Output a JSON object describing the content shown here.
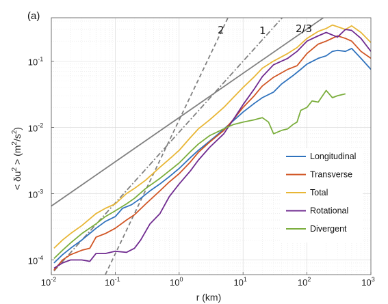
{
  "chart_data": {
    "type": "line",
    "panel_label": "(a)",
    "xlabel": "r (km)",
    "ylabel": "< δu² > (m²/s²)",
    "ylabel_parts": {
      "open": "< δu",
      "sup1": "2",
      "mid": "> (m",
      "sup2": "2",
      "mid2": "/s",
      "sup3": "2",
      "close": ")"
    },
    "xscale": "log",
    "yscale": "log",
    "xlim": [
      0.01,
      1000
    ],
    "ylim": [
      6e-05,
      0.45
    ],
    "grid": true,
    "legend_position": "lower-right",
    "x_ticks": [
      {
        "base": "10",
        "exp": "-2",
        "value": 0.01
      },
      {
        "base": "10",
        "exp": "-1",
        "value": 0.1
      },
      {
        "base": "10",
        "exp": "0",
        "value": 1
      },
      {
        "base": "10",
        "exp": "1",
        "value": 10
      },
      {
        "base": "10",
        "exp": "2",
        "value": 100
      },
      {
        "base": "10",
        "exp": "3",
        "value": 1000
      }
    ],
    "y_ticks": [
      {
        "base": "10",
        "exp": "-4",
        "value": 0.0001
      },
      {
        "base": "10",
        "exp": "-3",
        "value": 0.001
      },
      {
        "base": "10",
        "exp": "-2",
        "value": 0.01
      },
      {
        "base": "10",
        "exp": "-1",
        "value": 0.1
      }
    ],
    "series": [
      {
        "name": "Longitudinal",
        "color": "#2f72bd",
        "points": [
          [
            0.011,
            9e-05
          ],
          [
            0.015,
            0.00012
          ],
          [
            0.02,
            0.00015
          ],
          [
            0.03,
            0.0002
          ],
          [
            0.05,
            0.0003
          ],
          [
            0.07,
            0.00038
          ],
          [
            0.1,
            0.00045
          ],
          [
            0.13,
            0.0006
          ],
          [
            0.18,
            0.00068
          ],
          [
            0.25,
            0.00085
          ],
          [
            0.35,
            0.0011
          ],
          [
            0.5,
            0.0014
          ],
          [
            0.7,
            0.0018
          ],
          [
            1,
            0.0024
          ],
          [
            1.5,
            0.0035
          ],
          [
            2,
            0.0045
          ],
          [
            3,
            0.0062
          ],
          [
            4,
            0.0078
          ],
          [
            6,
            0.011
          ],
          [
            8,
            0.014
          ],
          [
            10,
            0.017
          ],
          [
            15,
            0.023
          ],
          [
            20,
            0.028
          ],
          [
            30,
            0.034
          ],
          [
            40,
            0.045
          ],
          [
            60,
            0.06
          ],
          [
            80,
            0.075
          ],
          [
            100,
            0.09
          ],
          [
            150,
            0.11
          ],
          [
            200,
            0.12
          ],
          [
            250,
            0.14
          ],
          [
            300,
            0.145
          ],
          [
            400,
            0.14
          ],
          [
            500,
            0.155
          ],
          [
            700,
            0.11
          ],
          [
            1000,
            0.075
          ]
        ]
      },
      {
        "name": "Transverse",
        "color": "#d05423",
        "points": [
          [
            0.011,
            7e-05
          ],
          [
            0.015,
            0.0001
          ],
          [
            0.02,
            0.00012
          ],
          [
            0.03,
            0.00014
          ],
          [
            0.04,
            0.00015
          ],
          [
            0.05,
            0.00022
          ],
          [
            0.07,
            0.00025
          ],
          [
            0.1,
            0.0003
          ],
          [
            0.15,
            0.0004
          ],
          [
            0.2,
            0.00048
          ],
          [
            0.3,
            0.0007
          ],
          [
            0.5,
            0.0011
          ],
          [
            0.7,
            0.0015
          ],
          [
            1,
            0.002
          ],
          [
            1.5,
            0.003
          ],
          [
            2,
            0.0042
          ],
          [
            3,
            0.006
          ],
          [
            5,
            0.009
          ],
          [
            7,
            0.013
          ],
          [
            10,
            0.02
          ],
          [
            15,
            0.03
          ],
          [
            20,
            0.042
          ],
          [
            30,
            0.057
          ],
          [
            50,
            0.075
          ],
          [
            70,
            0.085
          ],
          [
            100,
            0.13
          ],
          [
            150,
            0.18
          ],
          [
            200,
            0.2
          ],
          [
            300,
            0.24
          ],
          [
            400,
            0.22
          ],
          [
            500,
            0.2
          ],
          [
            700,
            0.14
          ],
          [
            1000,
            0.11
          ]
        ]
      },
      {
        "name": "Total",
        "color": "#e8b635",
        "points": [
          [
            0.011,
            0.00015
          ],
          [
            0.015,
            0.0002
          ],
          [
            0.02,
            0.00025
          ],
          [
            0.03,
            0.00033
          ],
          [
            0.05,
            0.0005
          ],
          [
            0.07,
            0.0006
          ],
          [
            0.1,
            0.0007
          ],
          [
            0.15,
            0.001
          ],
          [
            0.2,
            0.0012
          ],
          [
            0.3,
            0.0016
          ],
          [
            0.5,
            0.0025
          ],
          [
            0.7,
            0.0033
          ],
          [
            1,
            0.0045
          ],
          [
            1.5,
            0.007
          ],
          [
            2,
            0.0095
          ],
          [
            3,
            0.013
          ],
          [
            5,
            0.02
          ],
          [
            7,
            0.028
          ],
          [
            10,
            0.04
          ],
          [
            15,
            0.058
          ],
          [
            20,
            0.078
          ],
          [
            30,
            0.1
          ],
          [
            50,
            0.13
          ],
          [
            70,
            0.16
          ],
          [
            100,
            0.22
          ],
          [
            150,
            0.28
          ],
          [
            200,
            0.31
          ],
          [
            250,
            0.35
          ],
          [
            300,
            0.33
          ],
          [
            400,
            0.3
          ],
          [
            500,
            0.34
          ],
          [
            700,
            0.27
          ],
          [
            1000,
            0.19
          ]
        ]
      },
      {
        "name": "Rotational",
        "color": "#6f2a8f",
        "points": [
          [
            0.011,
            7.5e-05
          ],
          [
            0.015,
            9e-05
          ],
          [
            0.02,
            0.0001
          ],
          [
            0.03,
            0.0001
          ],
          [
            0.04,
            9.5e-05
          ],
          [
            0.05,
            0.000125
          ],
          [
            0.07,
            0.000125
          ],
          [
            0.1,
            0.000135
          ],
          [
            0.15,
            0.00013
          ],
          [
            0.2,
            0.00015
          ],
          [
            0.25,
            0.0002
          ],
          [
            0.35,
            0.00035
          ],
          [
            0.5,
            0.0005
          ],
          [
            0.7,
            0.0009
          ],
          [
            1,
            0.0014
          ],
          [
            1.5,
            0.0022
          ],
          [
            2,
            0.0032
          ],
          [
            3,
            0.005
          ],
          [
            5,
            0.008
          ],
          [
            7,
            0.013
          ],
          [
            10,
            0.022
          ],
          [
            15,
            0.038
          ],
          [
            20,
            0.058
          ],
          [
            30,
            0.088
          ],
          [
            50,
            0.11
          ],
          [
            70,
            0.14
          ],
          [
            100,
            0.2
          ],
          [
            150,
            0.24
          ],
          [
            200,
            0.27
          ],
          [
            300,
            0.23
          ],
          [
            400,
            0.3
          ],
          [
            500,
            0.29
          ],
          [
            700,
            0.22
          ],
          [
            1000,
            0.14
          ]
        ]
      },
      {
        "name": "Divergent",
        "color": "#7aad3b",
        "points": [
          [
            0.011,
            0.000105
          ],
          [
            0.015,
            0.00014
          ],
          [
            0.02,
            0.00018
          ],
          [
            0.03,
            0.00025
          ],
          [
            0.05,
            0.00035
          ],
          [
            0.07,
            0.00045
          ],
          [
            0.1,
            0.00055
          ],
          [
            0.15,
            0.0007
          ],
          [
            0.2,
            0.00085
          ],
          [
            0.3,
            0.0012
          ],
          [
            0.5,
            0.0017
          ],
          [
            0.7,
            0.0022
          ],
          [
            1,
            0.0029
          ],
          [
            1.5,
            0.0043
          ],
          [
            2,
            0.0056
          ],
          [
            3,
            0.0075
          ],
          [
            5,
            0.0095
          ],
          [
            7,
            0.011
          ],
          [
            10,
            0.012
          ],
          [
            15,
            0.013
          ],
          [
            20,
            0.014
          ],
          [
            25,
            0.012
          ],
          [
            30,
            0.008
          ],
          [
            40,
            0.009
          ],
          [
            50,
            0.0095
          ],
          [
            60,
            0.011
          ],
          [
            70,
            0.012
          ],
          [
            80,
            0.018
          ],
          [
            100,
            0.02
          ],
          [
            120,
            0.025
          ],
          [
            150,
            0.024
          ],
          [
            200,
            0.036
          ],
          [
            250,
            0.028
          ],
          [
            300,
            0.03
          ],
          [
            400,
            0.032
          ]
        ]
      }
    ],
    "reference_lines": [
      {
        "label": "2",
        "slope": 2,
        "style": "dashed",
        "color": "#808080",
        "x0": 0.07,
        "y0": 6e-05,
        "x1": 5.8,
        "y1": 0.45
      },
      {
        "label": "1",
        "slope": 1,
        "style": "dashdot",
        "color": "#808080",
        "x0": 0.011,
        "y0": 6.8e-05,
        "x1": 41,
        "y1": 0.45
      },
      {
        "label": "2/3",
        "slope": "2/3",
        "style": "solid",
        "color": "#808080",
        "x0": 0.01,
        "y0": 0.00065,
        "x1": 180,
        "y1": 0.45
      }
    ]
  }
}
